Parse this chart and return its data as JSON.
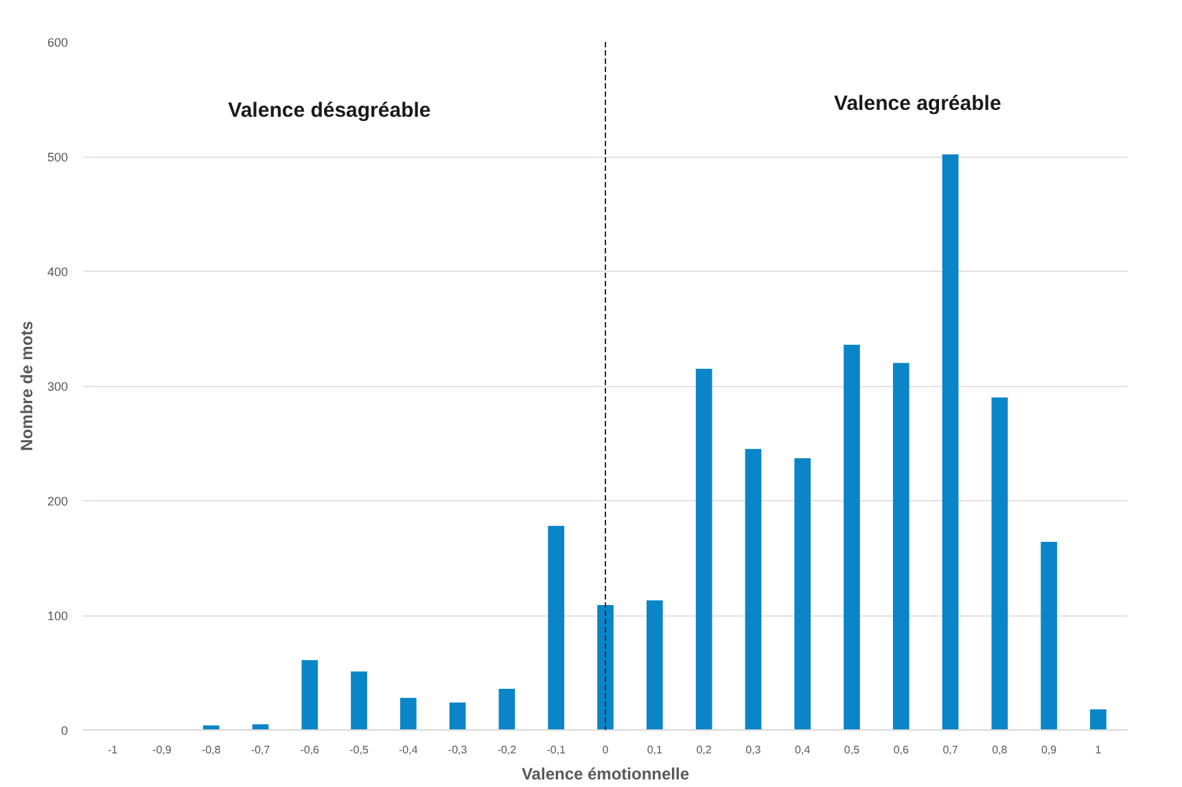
{
  "chart_data": {
    "type": "bar",
    "xlabel": "Valence émotionnelle",
    "ylabel": "Nombre de mots",
    "categories": [
      "-1",
      "-0,9",
      "-0,8",
      "-0,7",
      "-0,6",
      "-0,5",
      "-0,4",
      "-0,3",
      "-0,2",
      "-0,1",
      "0",
      "0,1",
      "0,2",
      "0,3",
      "0,4",
      "0,5",
      "0,6",
      "0,7",
      "0,8",
      "0,9",
      "1"
    ],
    "values": [
      0,
      0,
      4,
      5,
      61,
      51,
      28,
      24,
      36,
      178,
      109,
      113,
      315,
      245,
      237,
      336,
      320,
      502,
      290,
      164,
      18
    ],
    "color": "#0a85c7",
    "ylim": [
      0,
      600
    ],
    "yticks": [
      0,
      100,
      200,
      300,
      400,
      500,
      600
    ],
    "grid": "y",
    "ref_lines": [
      {
        "axis": "x",
        "value": "0",
        "color": "#1f2a44",
        "line_style": "dashed"
      }
    ],
    "annotations": [
      "Valence désagréable",
      "Valence agréable"
    ]
  }
}
